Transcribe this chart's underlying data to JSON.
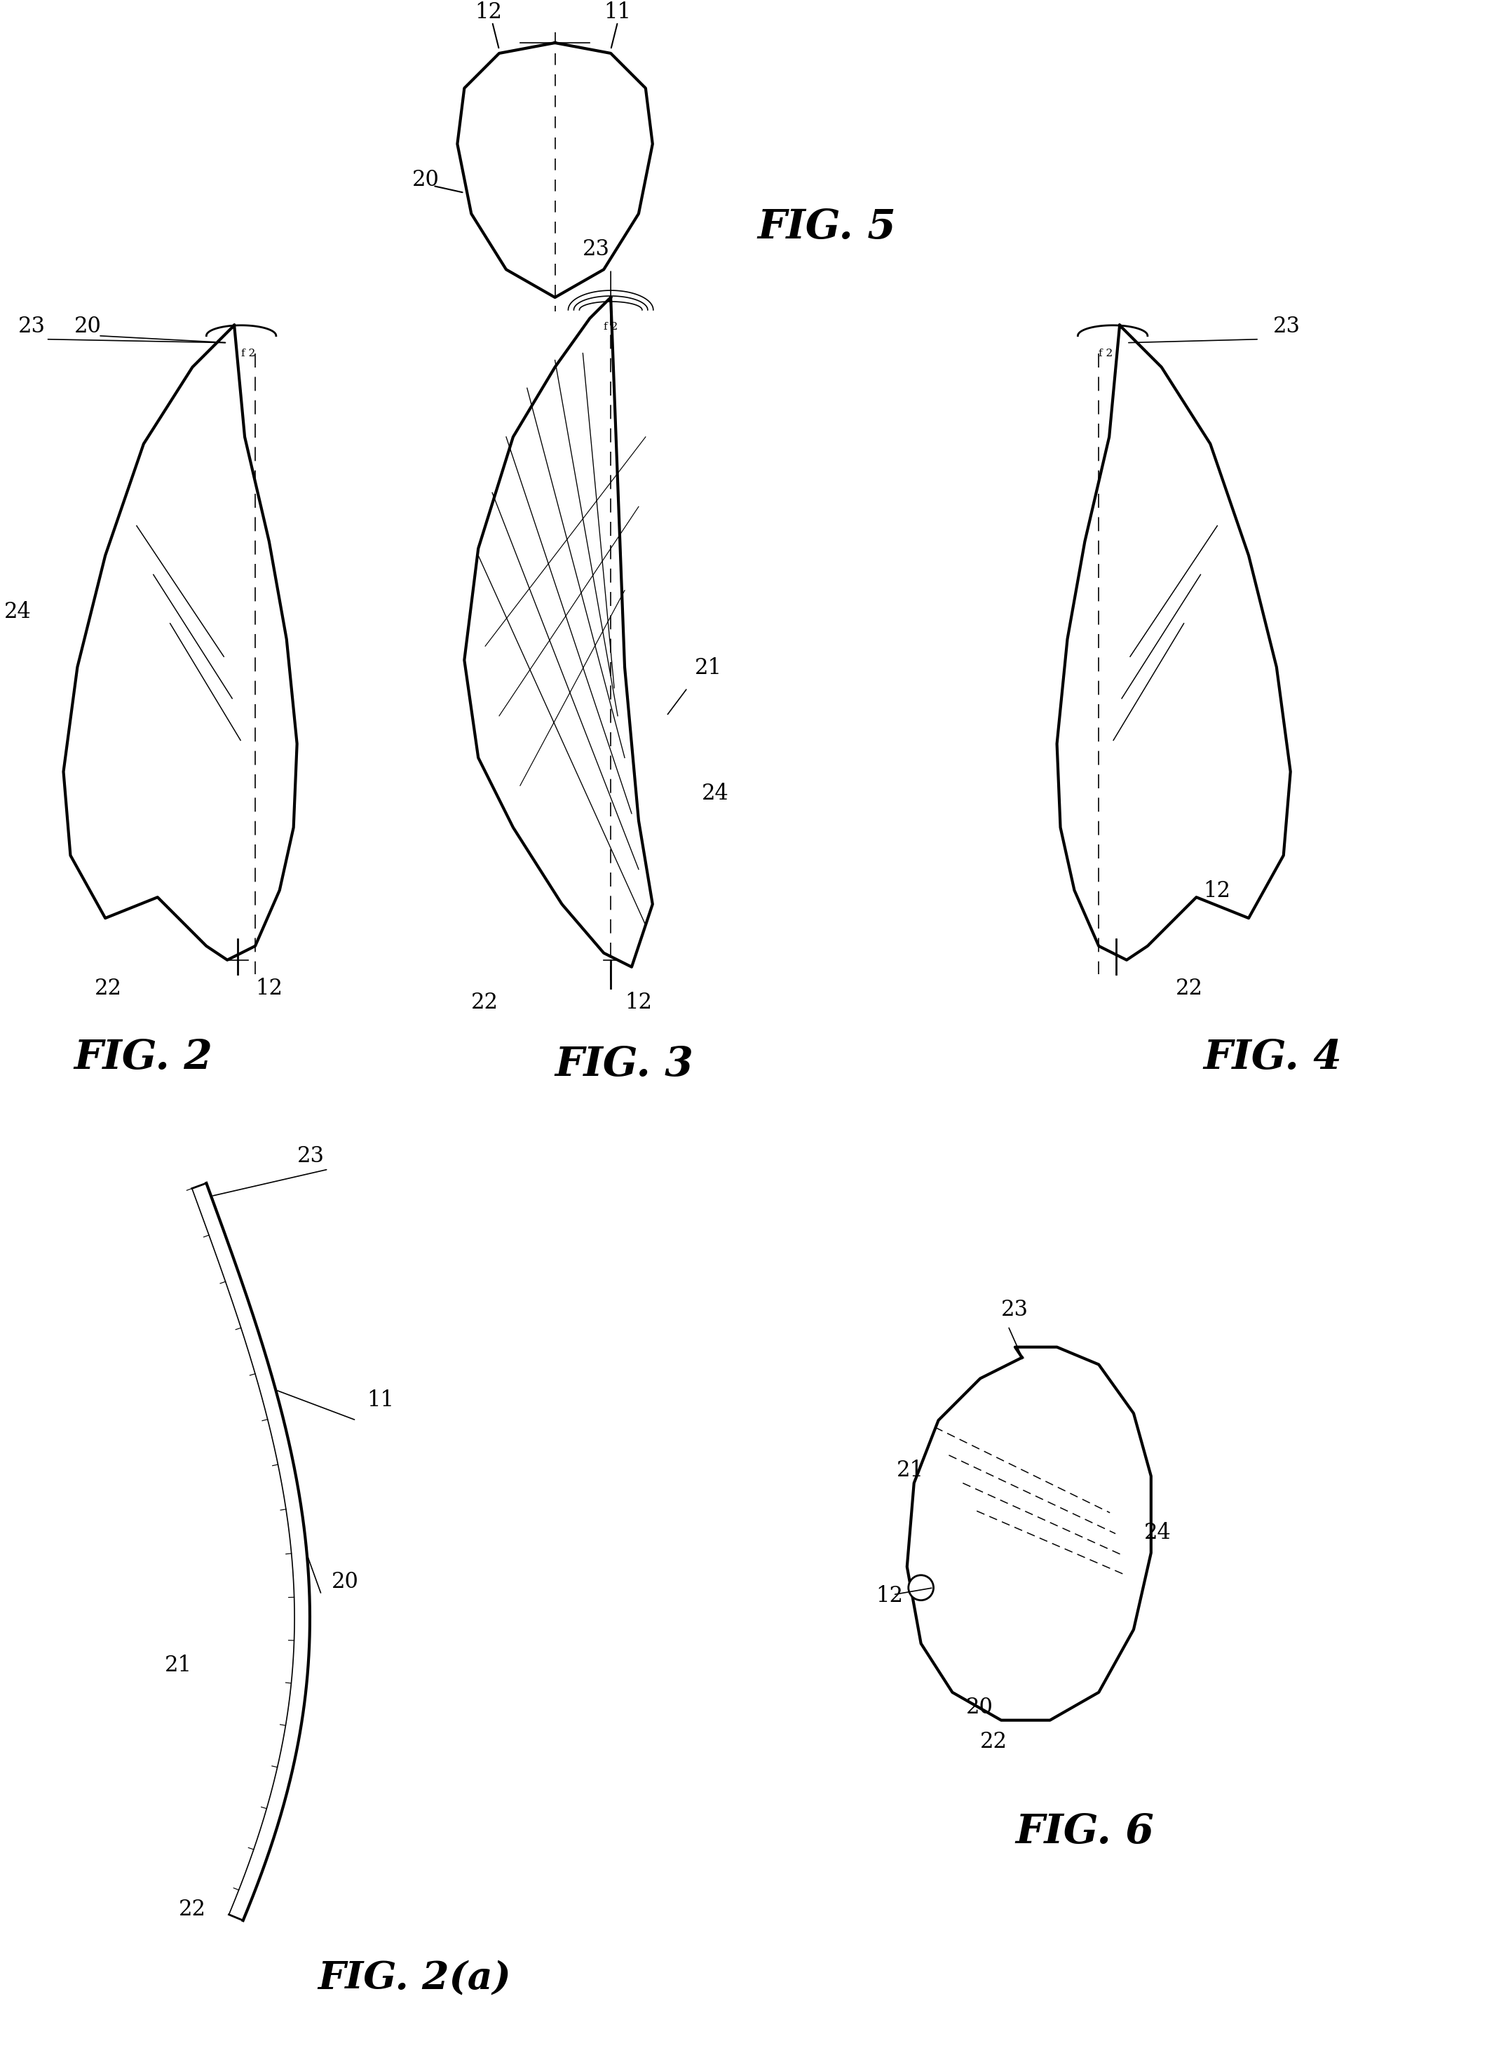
{
  "background_color": "#ffffff",
  "fig_width": 21.51,
  "fig_height": 29.3,
  "labels": {
    "fig2": "FIG. 2",
    "fig3": "FIG. 3",
    "fig4": "FIG. 4",
    "fig5": "FIG. 5",
    "fig6": "FIG. 6",
    "fig2a": "FIG. 2(a)"
  },
  "line_color": "#000000",
  "lw_thick": 3.0,
  "lw_thin": 1.2,
  "lw_medium": 2.0,
  "font_size_label": 42,
  "font_size_ref": 22
}
